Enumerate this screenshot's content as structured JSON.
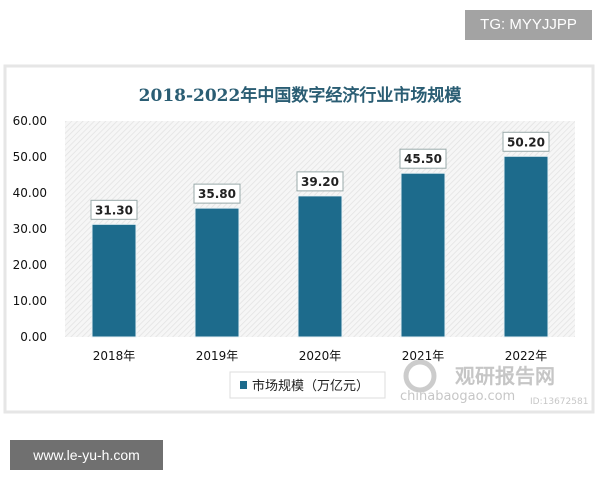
{
  "watermark_top": "TG: MYYJJPP",
  "watermark_bottom": "www.le-yu-h.com",
  "source_watermark": {
    "brand": "观研报告网",
    "site": "chinabaogao.com",
    "id": "ID:13672581"
  },
  "chart_data": {
    "type": "bar",
    "title": "2018-2022年中国数字经济行业市场规模",
    "categories": [
      "2018年",
      "2019年",
      "2020年",
      "2021年",
      "2022年"
    ],
    "series": [
      {
        "name": "市场规模（万亿元）",
        "values": [
          31.3,
          35.8,
          39.2,
          45.5,
          50.2
        ]
      }
    ],
    "data_labels": [
      "31.30",
      "35.80",
      "39.20",
      "45.50",
      "50.20"
    ],
    "yticks": [
      "0.00",
      "10.00",
      "20.00",
      "30.00",
      "40.00",
      "50.00",
      "60.00"
    ],
    "ylim": [
      0,
      60
    ],
    "xlabel": "",
    "ylabel": "",
    "legend": "bottom",
    "bar_color": "#1d6b8c"
  }
}
